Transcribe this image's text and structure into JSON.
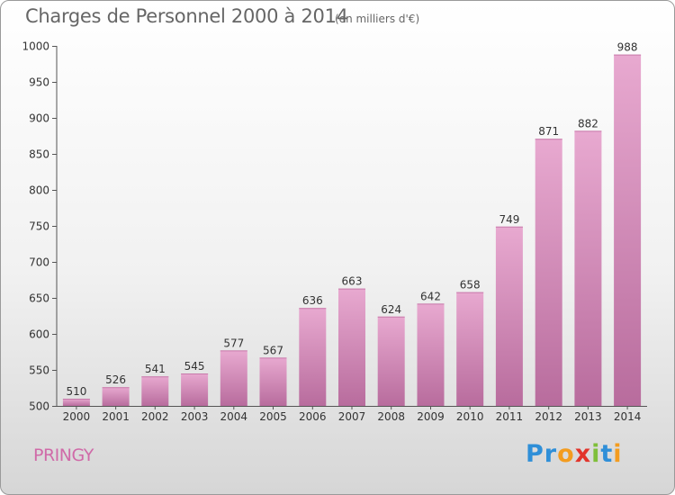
{
  "header": {
    "title": "Charges de Personnel 2000 à 2014",
    "subtitle": "(en milliers d'€)"
  },
  "commune": "PRINGY",
  "logo": {
    "text": "Proxiti"
  },
  "colors": {
    "bar_light": "#e8a9d0",
    "bar_dark": "#b86c9d",
    "title": "#666666",
    "commune": "#d06aa8"
  },
  "chart_data": {
    "type": "bar",
    "title": "Charges de Personnel 2000 à 2014",
    "subtitle": "(en milliers d'€)",
    "categories": [
      "2000",
      "2001",
      "2002",
      "2003",
      "2004",
      "2005",
      "2006",
      "2007",
      "2008",
      "2009",
      "2010",
      "2011",
      "2012",
      "2013",
      "2014"
    ],
    "values": [
      510,
      526,
      541,
      545,
      577,
      567,
      636,
      663,
      624,
      642,
      658,
      749,
      871,
      882,
      988
    ],
    "ylim": [
      500,
      1000
    ],
    "yticks": [
      500,
      550,
      600,
      650,
      700,
      750,
      800,
      850,
      900,
      950,
      1000
    ],
    "grid": false,
    "legend": "none"
  }
}
